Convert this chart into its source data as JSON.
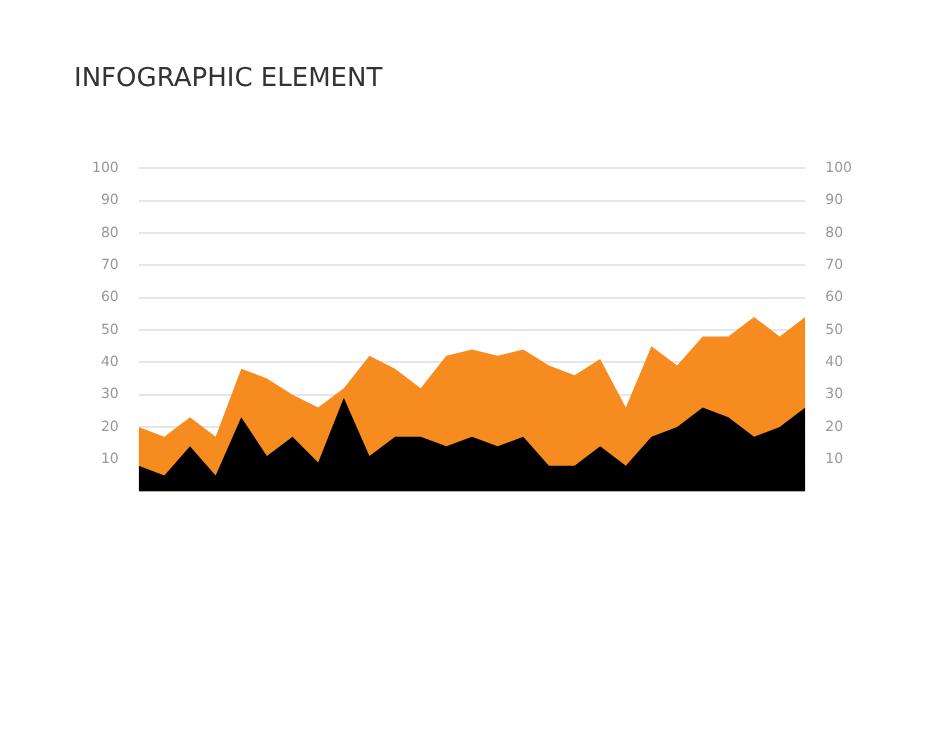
{
  "chart_data": {
    "type": "area",
    "title": "INFOGRAPHIC ELEMENT",
    "categories": [
      null,
      null,
      null,
      null,
      null,
      null,
      null,
      null,
      null,
      null,
      null,
      null,
      null,
      null,
      null,
      null,
      null,
      null,
      null,
      null,
      null,
      null,
      null,
      null,
      null,
      null,
      null
    ],
    "series": [
      {
        "color": "#f68b1f",
        "values": [
          20,
          17,
          23,
          17,
          38,
          35,
          30,
          26,
          32,
          42,
          38,
          32,
          42,
          44,
          42,
          44,
          39,
          36,
          41,
          26,
          45,
          39,
          48,
          48,
          54,
          48,
          54
        ]
      },
      {
        "color": "#000000",
        "values": [
          8,
          5,
          14,
          5,
          23,
          11,
          17,
          9,
          29,
          11,
          17,
          17,
          14,
          17,
          14,
          17,
          8,
          8,
          14,
          8,
          17,
          20,
          26,
          23,
          17,
          20,
          26
        ]
      }
    ],
    "ylim": [
      0,
      100
    ],
    "yticks": [
      10,
      20,
      30,
      40,
      50,
      60,
      70,
      80,
      90,
      100
    ],
    "y2lim": [
      0,
      100
    ],
    "y2ticks": [
      10,
      20,
      30,
      40,
      50,
      60,
      70,
      80,
      90,
      100
    ],
    "grid": "y",
    "legend": false,
    "tick_labels": "y"
  }
}
